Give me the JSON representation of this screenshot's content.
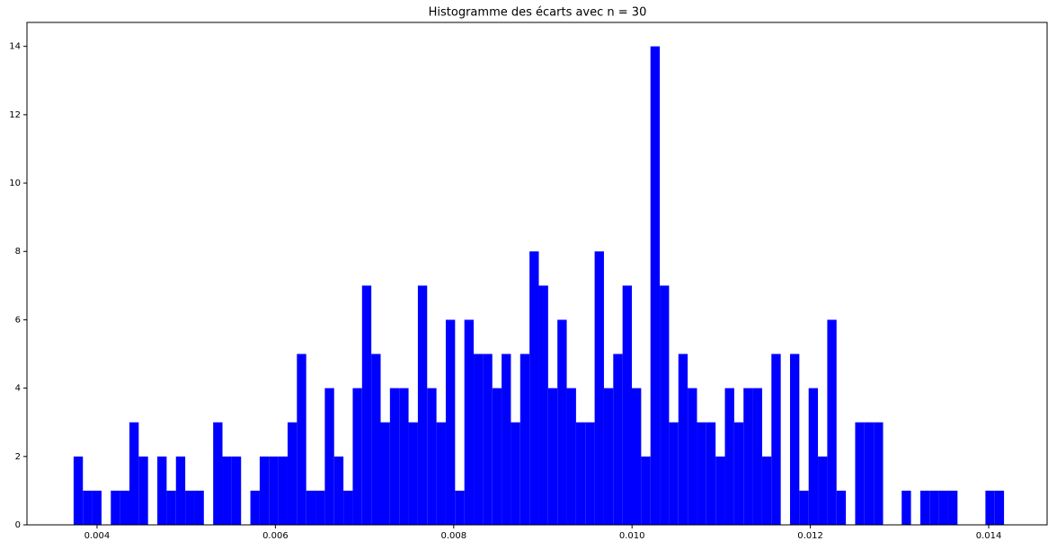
{
  "chart_data": {
    "type": "histogram",
    "title": "Histogramme des écarts avec n = 30",
    "color": "#0000ff",
    "bins": [
      0.003737,
      0.0038414,
      0.0039457,
      0.0040501,
      0.0041544,
      0.0042588,
      0.0043631,
      0.0044675,
      0.0045718,
      0.0046762,
      0.0047805,
      0.0048849,
      0.0049892,
      0.0050936,
      0.0051979,
      0.0053023,
      0.0054066,
      0.005511,
      0.0056153,
      0.0057197,
      0.005824,
      0.0059284,
      0.0060327,
      0.0061371,
      0.0062414,
      0.0063458,
      0.0064501,
      0.0065545,
      0.0066588,
      0.0067632,
      0.0068675,
      0.0069719,
      0.0070762,
      0.0071806,
      0.0072849,
      0.0073893,
      0.0074936,
      0.007598,
      0.0077023,
      0.0078067,
      0.007911,
      0.0080154,
      0.0081197,
      0.0082241,
      0.0083284,
      0.0084328,
      0.0085371,
      0.0086415,
      0.0087458,
      0.0088502,
      0.0089545,
      0.0090589,
      0.0091632,
      0.0092676,
      0.0093719,
      0.0094763,
      0.0095806,
      0.009685,
      0.0097893,
      0.0098937,
      0.009998,
      0.0101024,
      0.0102067,
      0.0103111,
      0.0104154,
      0.0105198,
      0.0106241,
      0.0107285,
      0.0108328,
      0.0109372,
      0.0110415,
      0.0111459,
      0.0112502,
      0.0113546,
      0.0114589,
      0.0115633,
      0.0116676,
      0.011772,
      0.0118763,
      0.0119807,
      0.012085,
      0.0121894,
      0.0122937,
      0.0123981,
      0.0125024,
      0.0126068,
      0.0127111,
      0.0128155,
      0.0129198,
      0.0130242,
      0.0131285,
      0.0132329,
      0.0133372,
      0.0134416,
      0.0135459,
      0.0136503,
      0.0137546,
      0.013859,
      0.0139633,
      0.0140677,
      0.014172
    ],
    "values": [
      2,
      1,
      1,
      0,
      1,
      1,
      3,
      2,
      0,
      2,
      1,
      2,
      1,
      1,
      0,
      3,
      2,
      2,
      0,
      1,
      2,
      2,
      2,
      3,
      5,
      1,
      1,
      4,
      2,
      1,
      4,
      7,
      5,
      3,
      4,
      4,
      3,
      7,
      4,
      3,
      6,
      1,
      6,
      5,
      5,
      4,
      5,
      3,
      5,
      8,
      7,
      4,
      6,
      4,
      3,
      3,
      8,
      4,
      5,
      7,
      4,
      2,
      14,
      7,
      3,
      5,
      4,
      3,
      3,
      2,
      4,
      3,
      4,
      4,
      2,
      5,
      0,
      5,
      1,
      4,
      2,
      6,
      1,
      0,
      3,
      3,
      3,
      0,
      0,
      1,
      0,
      1,
      1,
      1,
      1,
      0,
      0,
      0,
      1,
      1
    ],
    "xlim": [
      0.003214,
      0.014655
    ],
    "ylim": [
      0,
      14.7
    ],
    "xticks": [
      0.004,
      0.006,
      0.008,
      {
        "value": 0.01,
        "label": "0.010"
      },
      0.012,
      0.014
    ],
    "yticks": [
      0,
      2,
      4,
      6,
      8,
      10,
      12,
      14
    ]
  }
}
